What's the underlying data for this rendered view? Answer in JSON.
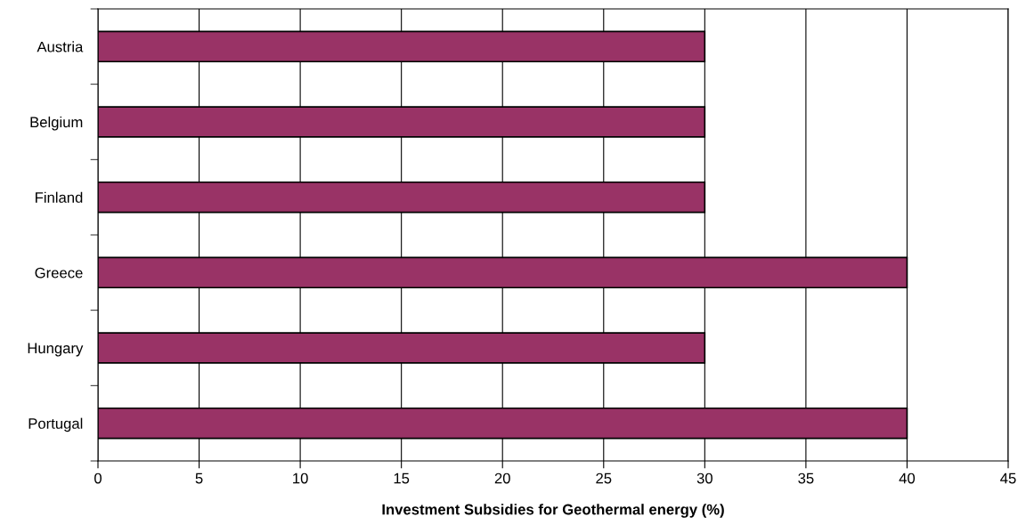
{
  "chart_data": {
    "type": "bar",
    "orientation": "horizontal",
    "xlabel": "Investment Subsidies for Geothermal energy (%)",
    "categories": [
      "Austria",
      "Belgium",
      "Finland",
      "Greece",
      "Hungary",
      "Portugal"
    ],
    "values": [
      30,
      30,
      30,
      40,
      30,
      40
    ],
    "color": "#993366",
    "xlim": [
      0,
      45
    ],
    "xticks": [
      0,
      5,
      10,
      15,
      20,
      25,
      30,
      35,
      40,
      45
    ],
    "grid": "x",
    "legend": false
  }
}
